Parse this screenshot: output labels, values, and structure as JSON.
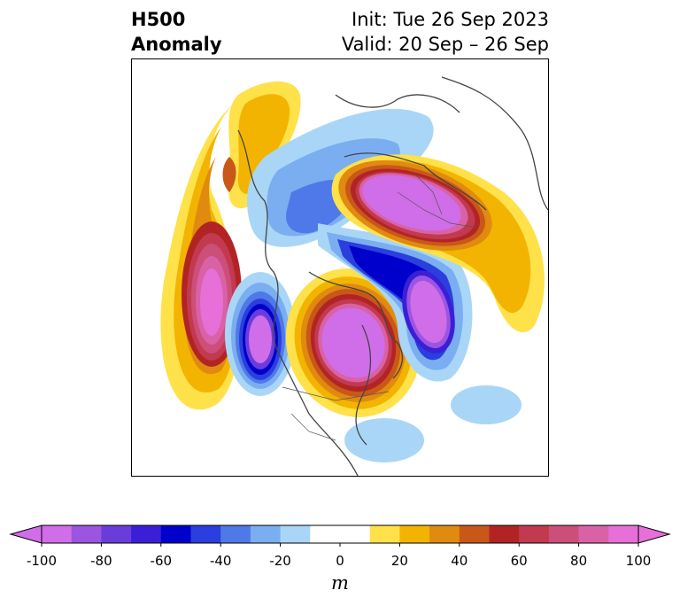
{
  "title": {
    "left_line1": "H500",
    "left_line2": "Anomaly",
    "right_line1": "Init: Tue 26 Sep 2023",
    "right_line2": "Valid: 20 Sep – 26 Sep"
  },
  "colorbar": {
    "unit": "m",
    "levels": [
      -100,
      -90,
      -80,
      -70,
      -60,
      -50,
      -40,
      -30,
      -20,
      -10,
      10,
      20,
      30,
      40,
      50,
      60,
      70,
      80,
      90,
      100
    ],
    "tick_values": [
      -100,
      -80,
      -60,
      -40,
      -20,
      0,
      20,
      40,
      60,
      80,
      100
    ],
    "tick_labels": [
      "-100",
      "-80",
      "-60",
      "-40",
      "-20",
      "0",
      "20",
      "40",
      "60",
      "80",
      "100"
    ],
    "colors": [
      "#d06de8",
      "#9b55e0",
      "#6a3ddb",
      "#3a1fd6",
      "#0000cc",
      "#2a3fdd",
      "#4f78e8",
      "#7aaef0",
      "#a9d6f7",
      "#ffffff",
      "#ffe14a",
      "#f2b400",
      "#e08a10",
      "#c85818",
      "#b22424",
      "#c23a50",
      "#cc4f7a",
      "#d962a6",
      "#e670d8"
    ],
    "extend": "both"
  }
}
